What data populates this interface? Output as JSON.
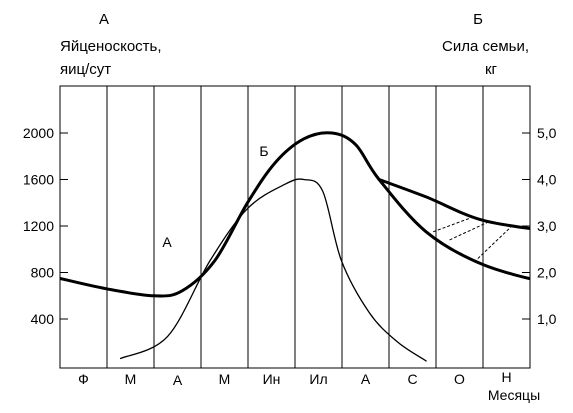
{
  "chart_data": {
    "type": "line",
    "left_axis": {
      "letter": "А",
      "title_line1": "Яйценоскость,",
      "title_line2": "яиц/сут",
      "ticks": [
        400,
        800,
        1200,
        1600,
        2000
      ],
      "range": [
        0,
        2600
      ]
    },
    "right_axis": {
      "letter": "Б",
      "title_line1": "Сила семьи,",
      "title_line2": "кг",
      "ticks": [
        "1,0",
        "2,0",
        "3,0",
        "4,0",
        "5,0"
      ],
      "tick_values": [
        1.0,
        2.0,
        3.0,
        4.0,
        5.0
      ],
      "range": [
        0,
        6.5
      ]
    },
    "x_axis": {
      "months": [
        "Ф",
        "М",
        "А",
        "М",
        "Ин",
        "Ил",
        "А",
        "С",
        "О",
        "Н"
      ],
      "label": "Месяцы"
    },
    "series": [
      {
        "name": "А",
        "axis": "left",
        "points": [
          [
            0.3,
            60
          ],
          [
            1.3,
            250
          ],
          [
            2.2,
            900
          ],
          [
            3.0,
            1350
          ],
          [
            3.8,
            1560
          ],
          [
            4.2,
            1600
          ],
          [
            4.6,
            1500
          ],
          [
            5.0,
            900
          ],
          [
            5.6,
            450
          ],
          [
            6.2,
            200
          ],
          [
            6.8,
            40
          ]
        ]
      },
      {
        "name": "Б",
        "axis": "left",
        "points": [
          [
            -1.0,
            750
          ],
          [
            0.0,
            660
          ],
          [
            1.0,
            600
          ],
          [
            1.6,
            640
          ],
          [
            2.3,
            900
          ],
          [
            3.0,
            1400
          ],
          [
            3.6,
            1750
          ],
          [
            4.2,
            1950
          ],
          [
            4.8,
            2000
          ],
          [
            5.3,
            1900
          ],
          [
            5.8,
            1600
          ],
          [
            6.8,
            1150
          ],
          [
            8.0,
            870
          ],
          [
            9.5,
            700
          ],
          [
            10.5,
            630
          ]
        ]
      },
      {
        "name": "",
        "axis": "left",
        "points": [
          [
            5.8,
            1600
          ],
          [
            6.8,
            1450
          ],
          [
            8.0,
            1250
          ],
          [
            9.5,
            1150
          ],
          [
            10.5,
            1080
          ]
        ]
      }
    ],
    "series_labels": {
      "a": "А",
      "b": "Б"
    }
  }
}
